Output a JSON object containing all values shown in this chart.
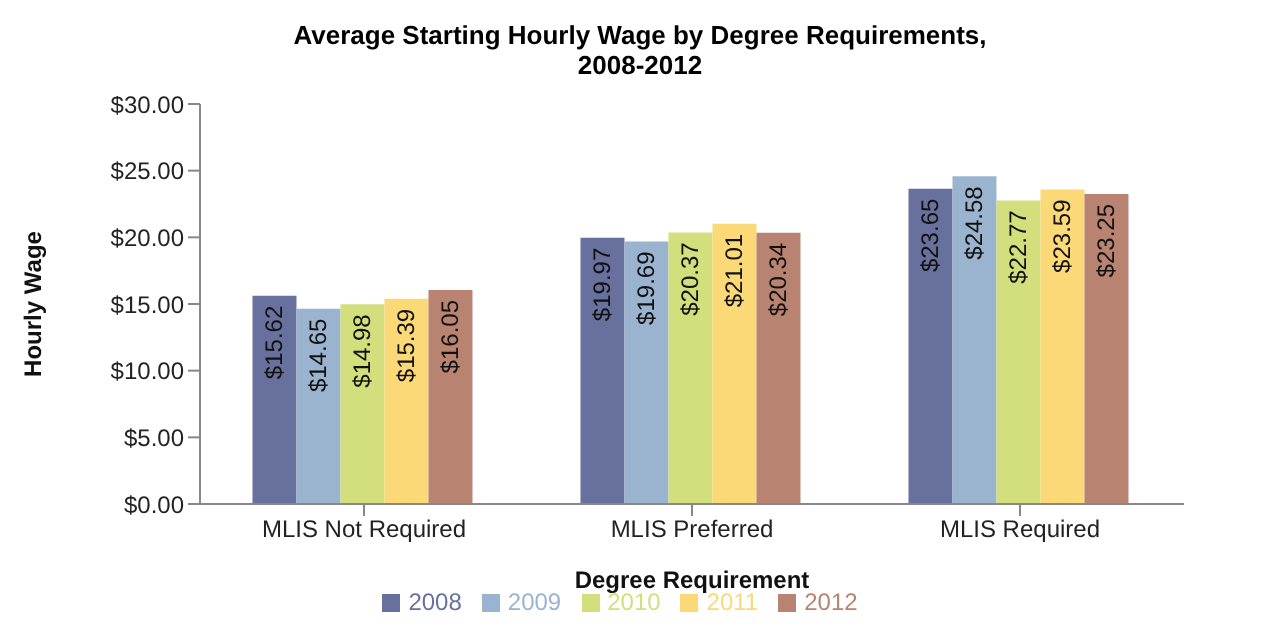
{
  "chart_data": {
    "type": "bar",
    "title": "Average Starting Hourly Wage by Degree Requirements,\n2008-2012",
    "xlabel": "Degree Requirement",
    "ylabel": "Hourly Wage",
    "categories": [
      "MLIS Not Required",
      "MLIS Preferred",
      "MLIS Required"
    ],
    "series": [
      {
        "name": "2008",
        "color": "#68709e",
        "values": [
          15.62,
          19.97,
          23.65
        ],
        "value_labels": [
          "$15.62",
          "$19.97",
          "$23.65"
        ]
      },
      {
        "name": "2009",
        "color": "#9ab4cf",
        "values": [
          14.65,
          19.69,
          24.58
        ],
        "value_labels": [
          "$14.65",
          "$19.69",
          "$24.58"
        ]
      },
      {
        "name": "2010",
        "color": "#d3df7c",
        "values": [
          14.98,
          20.37,
          22.77
        ],
        "value_labels": [
          "$14.98",
          "$20.37",
          "$22.77"
        ]
      },
      {
        "name": "2011",
        "color": "#fcd977",
        "values": [
          15.39,
          21.01,
          23.59
        ],
        "value_labels": [
          "$15.39",
          "$21.01",
          "$23.59"
        ]
      },
      {
        "name": "2012",
        "color": "#b88371",
        "values": [
          16.05,
          20.34,
          23.25
        ],
        "value_labels": [
          "$16.05",
          "$20.34",
          "$23.25"
        ]
      }
    ],
    "ylim": [
      0,
      30
    ],
    "yticks": [
      {
        "value": 0,
        "label": "$0.00"
      },
      {
        "value": 5,
        "label": "$5.00"
      },
      {
        "value": 10,
        "label": "$10.00"
      },
      {
        "value": 15,
        "label": "$15.00"
      },
      {
        "value": 20,
        "label": "$20.00"
      },
      {
        "value": 25,
        "label": "$25.00"
      },
      {
        "value": 30,
        "label": "$30.00"
      }
    ],
    "grid": false,
    "legend": "bottom"
  }
}
